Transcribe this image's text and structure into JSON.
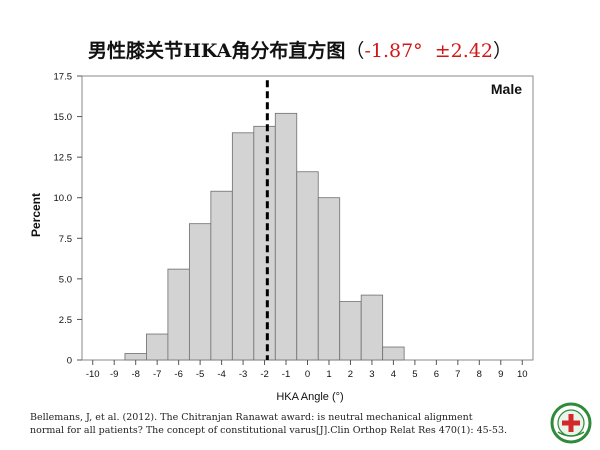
{
  "header": {
    "title_cn": "男性膝关节HKA角分布直方图",
    "paren_open": "（",
    "mean": "-1.87°",
    "sd": "±2.42",
    "paren_close": "）"
  },
  "chart_data": {
    "type": "bar",
    "legend_label": "Male",
    "xlabel": "HKA Angle (°)",
    "ylabel": "Percent",
    "xlim": [
      -10.5,
      10.5
    ],
    "ylim": [
      0,
      17.5
    ],
    "xticks": [
      -10,
      -9,
      -8,
      -7,
      -6,
      -5,
      -4,
      -3,
      -2,
      -1,
      0,
      1,
      2,
      3,
      4,
      5,
      6,
      7,
      8,
      9,
      10
    ],
    "yticks": [
      "0",
      "2.5",
      "5.0",
      "7.5",
      "10.0",
      "12.5",
      "15.0",
      "17.5"
    ],
    "bin_width": 1,
    "bins": [
      {
        "x": -8,
        "value": 0.4
      },
      {
        "x": -7,
        "value": 1.6
      },
      {
        "x": -6,
        "value": 5.6
      },
      {
        "x": -5,
        "value": 8.4
      },
      {
        "x": -4,
        "value": 10.4
      },
      {
        "x": -3,
        "value": 14.0
      },
      {
        "x": -2,
        "value": 14.4
      },
      {
        "x": -1,
        "value": 15.2
      },
      {
        "x": 0,
        "value": 11.6
      },
      {
        "x": 1,
        "value": 10.0
      },
      {
        "x": 2,
        "value": 3.6
      },
      {
        "x": 3,
        "value": 4.0
      },
      {
        "x": 4,
        "value": 0.8
      }
    ],
    "mean_line_x": -1.87,
    "colors": {
      "bar_fill": "#d3d3d3",
      "bar_stroke": "#6e6e6e",
      "mean_line": "#000000"
    }
  },
  "citation": {
    "line1": "Bellemans, J, et al. (2012). The Chitranjan Ranawat award: is neutral mechanical alignment",
    "line2": "normal for all patients? The concept of constitutional varus[J].Clin Orthop Relat Res 470(1): 45-53."
  },
  "logo": {
    "icon": "hospital-emblem-icon",
    "colors": {
      "ring": "#2f8a3a",
      "cross": "#d22a2a"
    }
  }
}
